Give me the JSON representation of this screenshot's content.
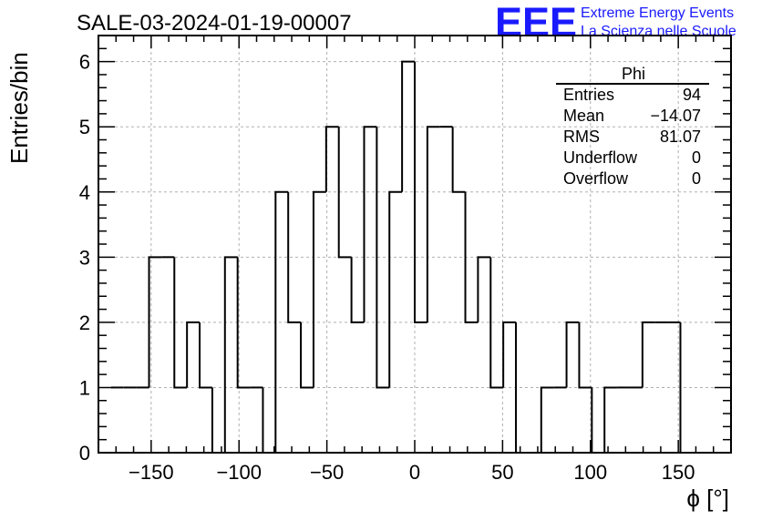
{
  "chart_data": {
    "type": "bar",
    "histogram": true,
    "title": "SALE-03-2024-01-19-00007",
    "xlabel": "ϕ [°]",
    "ylabel": "Entries/bin",
    "xlim": [
      -180,
      180
    ],
    "ylim": [
      0,
      6.4
    ],
    "grid": true,
    "bin_width": 7.2,
    "x_ticks": [
      -150,
      -100,
      -50,
      0,
      50,
      100,
      150
    ],
    "x_tick_labels": [
      "−150",
      "−100",
      "−50",
      "0",
      "50",
      "100",
      "150"
    ],
    "y_ticks": [
      0,
      1,
      2,
      3,
      4,
      5,
      6
    ],
    "y_tick_labels": [
      "0",
      "1",
      "2",
      "3",
      "4",
      "5",
      "6"
    ],
    "bin_low_edges": [
      -172.8,
      -165.6,
      -158.4,
      -151.2,
      -144.0,
      -136.8,
      -129.6,
      -122.4,
      -115.2,
      -108.0,
      -100.8,
      -93.6,
      -86.4,
      -79.2,
      -72.0,
      -64.8,
      -57.6,
      -50.4,
      -43.2,
      -36.0,
      -28.8,
      -21.6,
      -14.4,
      -7.2,
      0.0,
      7.2,
      14.4,
      21.6,
      28.8,
      36.0,
      43.2,
      50.4,
      57.6,
      64.8,
      72.0,
      79.2,
      86.4,
      93.6,
      100.8,
      108.0,
      115.2,
      122.4,
      129.6,
      136.8,
      144.0,
      151.2
    ],
    "values": [
      1,
      1,
      1,
      3,
      3,
      1,
      2,
      1,
      0,
      3,
      1,
      1,
      0,
      4,
      2,
      1,
      4,
      5,
      3,
      2,
      5,
      1,
      4,
      6,
      2,
      5,
      5,
      4,
      2,
      3,
      1,
      2,
      0,
      0,
      1,
      1,
      2,
      1,
      0,
      1,
      1,
      1,
      2,
      2,
      2,
      0
    ]
  },
  "stats_box": {
    "title": "Phi",
    "rows": [
      {
        "label": "Entries",
        "value": "94"
      },
      {
        "label": "Mean",
        "value": "−14.07"
      },
      {
        "label": "RMS",
        "value": "81.07"
      },
      {
        "label": "Underflow",
        "value": "0"
      },
      {
        "label": "Overflow",
        "value": "0"
      }
    ]
  },
  "logo": {
    "mark": "EEE",
    "line1": "Extreme Energy Events",
    "line2": "La Scienza nelle Scuole",
    "color": "#1a1aff"
  },
  "colors": {
    "line": "#000000",
    "grid": "#b0b0b0"
  }
}
